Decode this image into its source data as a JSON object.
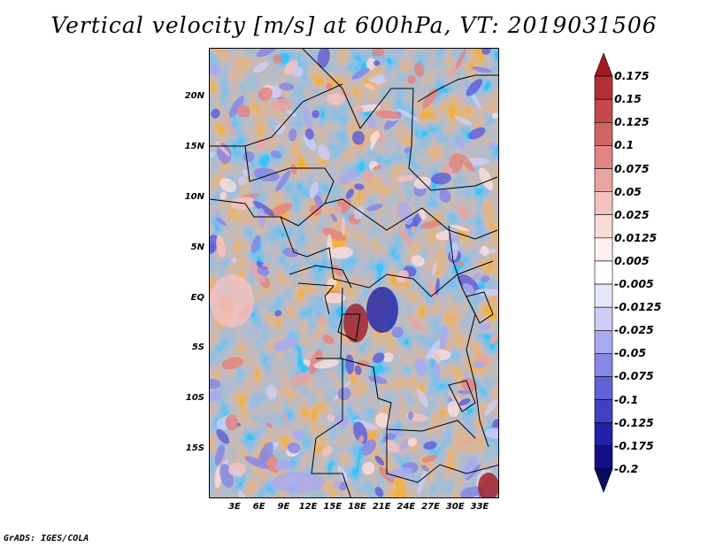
{
  "title": "Vertical velocity [m/s] at 600hPa, VT: 2019031506",
  "credit": "GrADS: IGES/COLA",
  "map": {
    "lat_labels": [
      "20N",
      "15N",
      "10N",
      "5N",
      "EQ",
      "5S",
      "10S",
      "15S"
    ],
    "lon_labels": [
      "3E",
      "6E",
      "9E",
      "12E",
      "15E",
      "18E",
      "21E",
      "24E",
      "27E",
      "30E",
      "33E"
    ]
  },
  "colorbar": {
    "labels": [
      "0.175",
      "0.15",
      "0.125",
      "0.1",
      "0.075",
      "0.05",
      "0.025",
      "0.0125",
      "0.005",
      "-0.005",
      "-0.0125",
      "-0.025",
      "-0.05",
      "-0.075",
      "-0.1",
      "-0.125",
      "-0.175",
      "-0.2"
    ],
    "colors": [
      "#a11a22",
      "#b42f34",
      "#c6494a",
      "#d46461",
      "#e08582",
      "#eaa3a0",
      "#f3c2bf",
      "#f8dcda",
      "#fdf1f0",
      "#ffffff",
      "#e6e6fb",
      "#cdcdf5",
      "#a9a9ee",
      "#8787e4",
      "#6262d7",
      "#4141c4",
      "#2020a8",
      "#150f86",
      "#0a0a60"
    ]
  }
}
